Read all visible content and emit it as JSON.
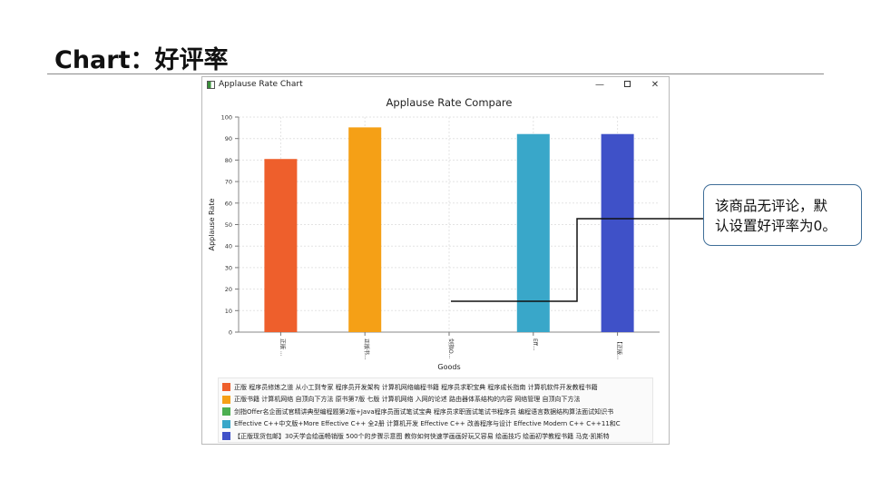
{
  "slide": {
    "title": "Chart：好评率"
  },
  "window": {
    "title": "Applause Rate Chart",
    "controls": {
      "minimize": "—",
      "close": "✕"
    }
  },
  "callout": {
    "line1": "该商品无评论，默",
    "line2": "认设置好评率为0。"
  },
  "chart_data": {
    "type": "bar",
    "title": "Applause Rate Compare",
    "xlabel": "Goods",
    "ylabel": "Applause Rate",
    "ylim": [
      0,
      100
    ],
    "yticks": [
      0,
      10,
      20,
      30,
      40,
      50,
      60,
      70,
      80,
      90,
      100
    ],
    "grid": true,
    "legend_position": "bottom",
    "categories": [
      "正版 ...",
      "正版书...",
      "剑指O...",
      "Eff...",
      "【正版..."
    ],
    "values": [
      80.5,
      95.2,
      0,
      92.1,
      92.1
    ],
    "series": [
      {
        "name": "正版 程序员修炼之道 从小工到专家 程序员开发架构 计算机网络编程书籍 程序员求职宝典 程序成长指南 计算机软件开发教程书籍",
        "color": "#ee5f2c",
        "value": 80.5
      },
      {
        "name": "正版书籍 计算机网络 自顶向下方法 原书第7版 七版 计算机网络 入网的论述 路由器体系结构的内容 网络管理 自顶向下方法",
        "color": "#f5a016",
        "value": 95.2
      },
      {
        "name": "剑指Offer名企面试官精讲典型编程题第2版+Java程序员面试笔试宝典 程序员求职面试笔试书程序员 编程语言数据结构算法面试知识书",
        "color": "#4caf50",
        "value": 0
      },
      {
        "name": "Effective C++中文版+More Effective C++ 全2册 计算机开发 Effective C++ 改善程序与设计 Effective Modern C++ C++11和C",
        "color": "#39a7c9",
        "value": 92.1
      },
      {
        "name": "【正版现货包邮】30天学会绘画畅销版 500个的步骤示意图 教你如何快速学画画好玩又容易 绘画技巧 绘画初学教程书籍 马克·凯斯特",
        "color": "#3f51c8",
        "value": 92.1
      }
    ]
  }
}
